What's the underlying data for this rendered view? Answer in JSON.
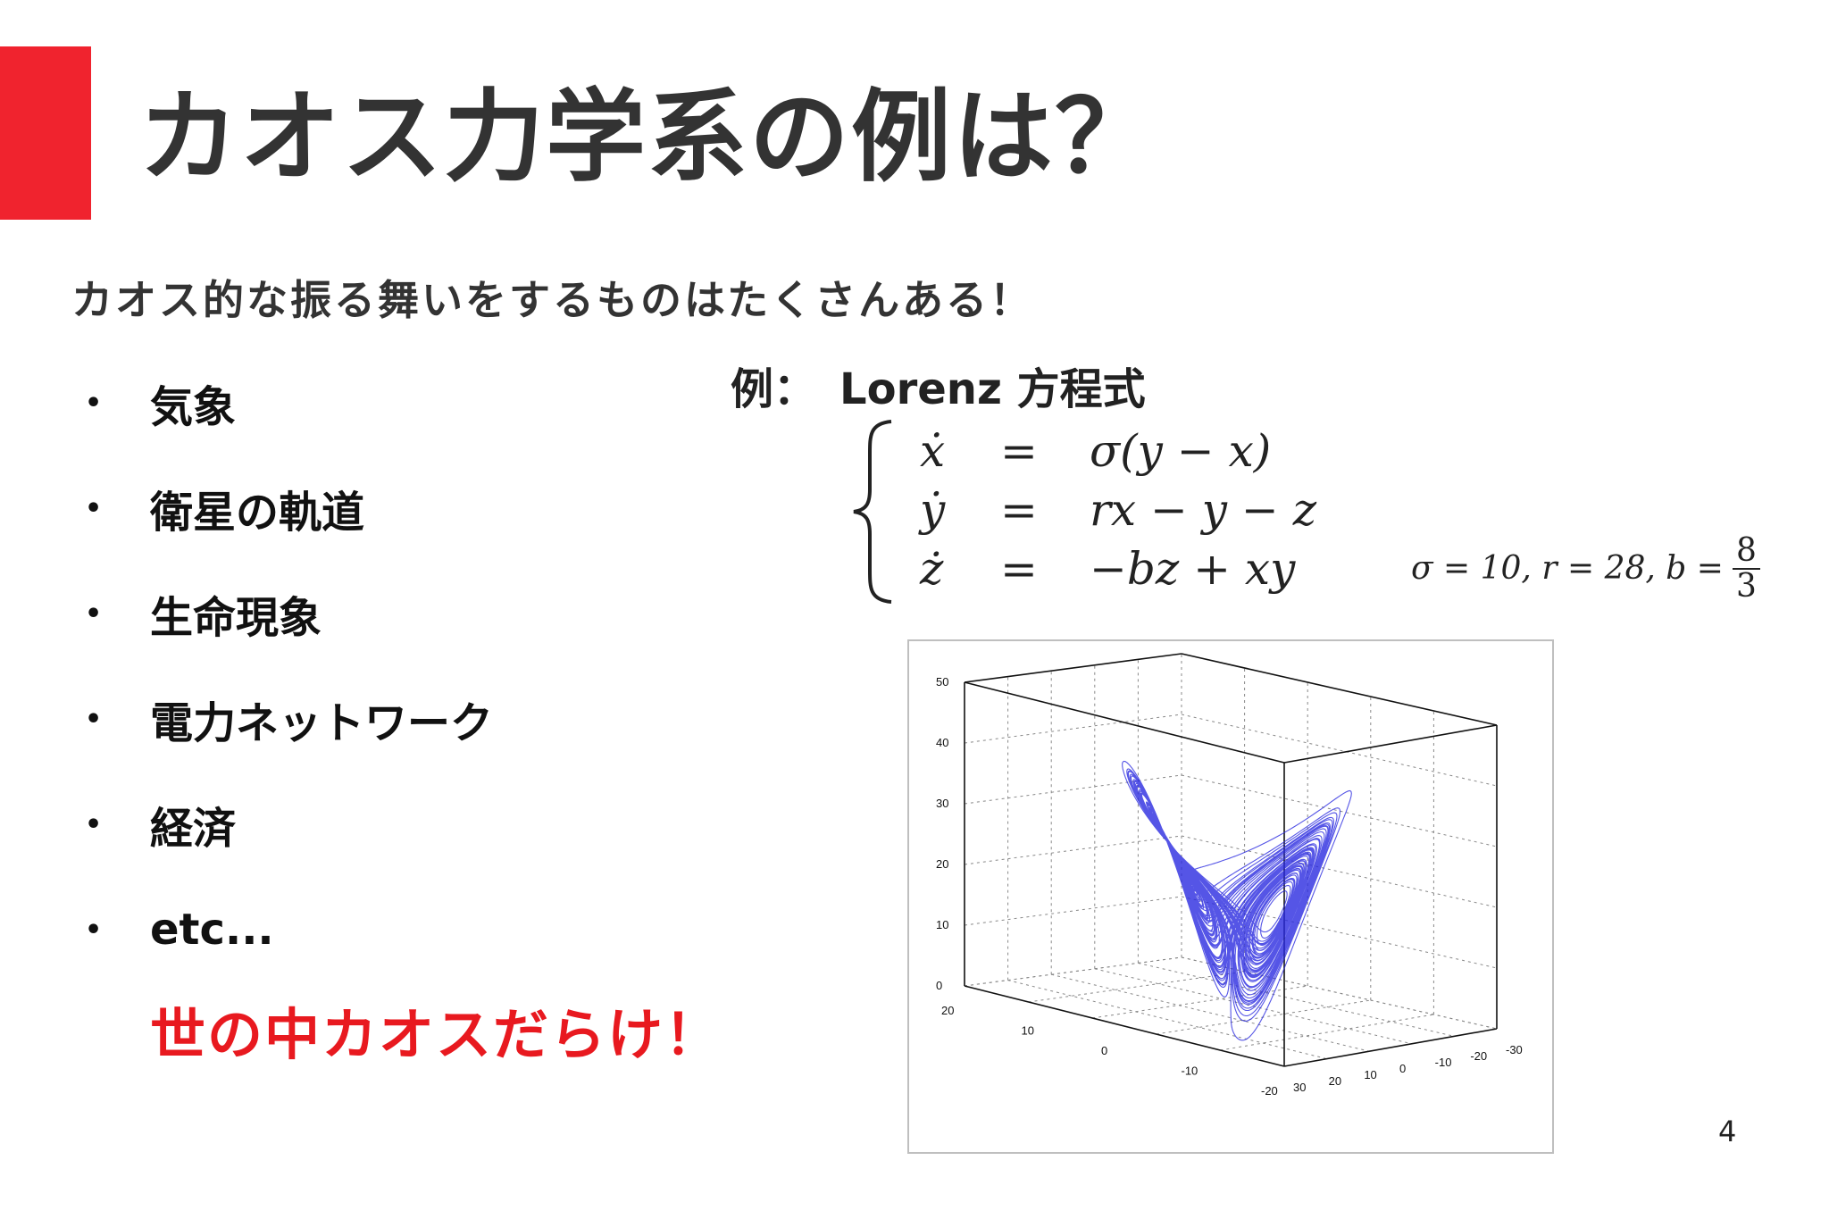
{
  "slide": {
    "title": "カオス力学系の例は？",
    "subtitle": "カオス的な振る舞いをするものはたくさんある！",
    "bullets": [
      "気象",
      "衛星の軌道",
      "生命現象",
      "電力ネットワーク",
      "経済",
      "etc..."
    ],
    "punchline": "世の中カオスだらけ！",
    "example_label": "例：",
    "example_name": "Lorenz 方程式",
    "equations": [
      {
        "lhs": "ẋ",
        "eq": "=",
        "rhs": "σ(y − x)"
      },
      {
        "lhs": "ẏ",
        "eq": "=",
        "rhs": "rx − y − z"
      },
      {
        "lhs": "ż",
        "eq": "=",
        "rhs": "−bz + xy"
      }
    ],
    "params_text": "σ = 10, r = 28, b =",
    "param_frac_num": "8",
    "param_frac_den": "3",
    "page_number": "4",
    "accent_color": "#f0232e",
    "punch_color": "#e8191f",
    "curve_color": "#2a2ae0"
  },
  "plot": {
    "z_ticks": [
      "50",
      "40",
      "30",
      "20",
      "10",
      "0"
    ],
    "y_ticks": [
      "20",
      "10",
      "0",
      "-10",
      "-20"
    ],
    "x_ticks": [
      "30",
      "20",
      "10",
      "0",
      "-10",
      "-20",
      "-30"
    ]
  }
}
